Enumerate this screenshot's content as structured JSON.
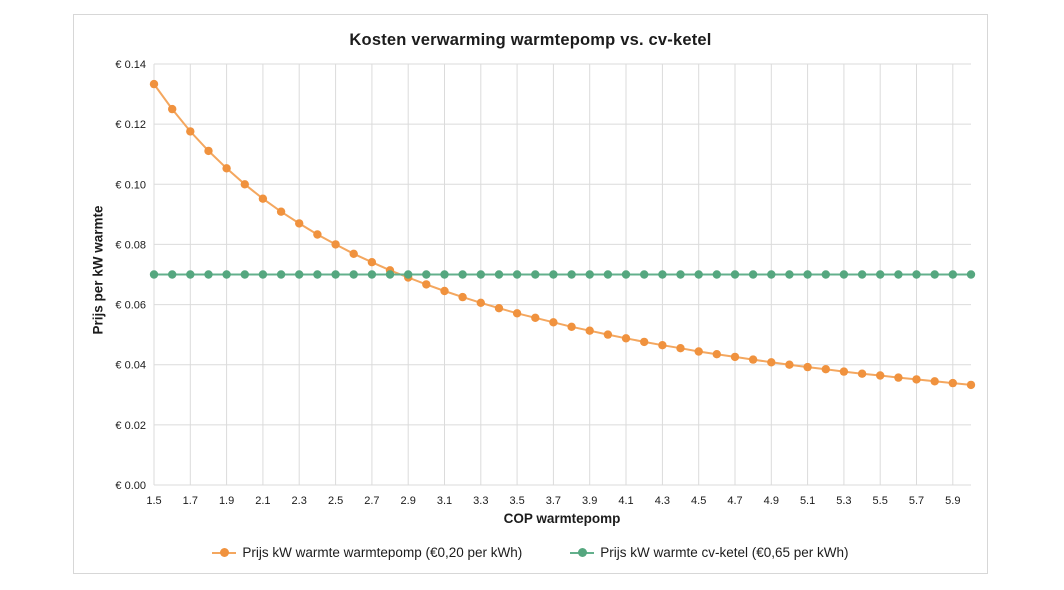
{
  "chart_data": {
    "type": "line",
    "title": "Kosten verwarming warmtepomp vs. cv-ketel",
    "xlabel": "COP warmtepomp",
    "ylabel": "Prijs per kW warmte",
    "xlim": [
      1.5,
      6.0
    ],
    "ylim": [
      0,
      0.14
    ],
    "grid": true,
    "grid_color": "#dbdbdb",
    "tick_color": "#1a1a1a",
    "y_tick_prefix": "€ ",
    "x_ticks": [
      1.5,
      1.7,
      1.9,
      2.1,
      2.3,
      2.5,
      2.7,
      2.9,
      3.1,
      3.3,
      3.5,
      3.7,
      3.9,
      4.1,
      4.3,
      4.5,
      4.7,
      4.9,
      5.1,
      5.3,
      5.5,
      5.7,
      5.9
    ],
    "y_ticks": [
      0,
      0.02,
      0.04,
      0.06,
      0.08,
      0.1,
      0.12,
      0.14
    ],
    "legend_position": "bottom",
    "x": [
      1.5,
      1.6,
      1.7,
      1.8,
      1.9,
      2.0,
      2.1,
      2.2,
      2.3,
      2.4,
      2.5,
      2.6,
      2.7,
      2.8,
      2.9,
      3.0,
      3.1,
      3.2,
      3.3,
      3.4,
      3.5,
      3.6,
      3.7,
      3.8,
      3.9,
      4.0,
      4.1,
      4.2,
      4.3,
      4.4,
      4.5,
      4.6,
      4.7,
      4.8,
      4.9,
      5.0,
      5.1,
      5.2,
      5.3,
      5.4,
      5.5,
      5.6,
      5.7,
      5.8,
      5.9,
      6.0
    ],
    "series": [
      {
        "id": "warmtepomp",
        "name": "Prijs kW warmte warmtepomp (€0,20 per kWh)",
        "color": "#f0923e",
        "line_color": "#f4a75f",
        "values": [
          0.1333,
          0.125,
          0.1176,
          0.1111,
          0.1053,
          0.1,
          0.0952,
          0.0909,
          0.087,
          0.0833,
          0.08,
          0.0769,
          0.0741,
          0.0714,
          0.069,
          0.0667,
          0.0645,
          0.0625,
          0.0606,
          0.0588,
          0.0571,
          0.0556,
          0.0541,
          0.0526,
          0.0513,
          0.05,
          0.0488,
          0.0476,
          0.0465,
          0.0455,
          0.0444,
          0.0435,
          0.0426,
          0.0417,
          0.0408,
          0.04,
          0.0392,
          0.0385,
          0.0377,
          0.037,
          0.0364,
          0.0357,
          0.0351,
          0.0345,
          0.0339,
          0.0333
        ]
      },
      {
        "id": "cv-ketel",
        "name": "Prijs kW warmte cv-ketel (€0,65 per kWh)",
        "color": "#55a77f",
        "line_color": "#63b08c",
        "values": [
          0.07,
          0.07,
          0.07,
          0.07,
          0.07,
          0.07,
          0.07,
          0.07,
          0.07,
          0.07,
          0.07,
          0.07,
          0.07,
          0.07,
          0.07,
          0.07,
          0.07,
          0.07,
          0.07,
          0.07,
          0.07,
          0.07,
          0.07,
          0.07,
          0.07,
          0.07,
          0.07,
          0.07,
          0.07,
          0.07,
          0.07,
          0.07,
          0.07,
          0.07,
          0.07,
          0.07,
          0.07,
          0.07,
          0.07,
          0.07,
          0.07,
          0.07,
          0.07,
          0.07,
          0.07,
          0.07
        ]
      }
    ]
  }
}
